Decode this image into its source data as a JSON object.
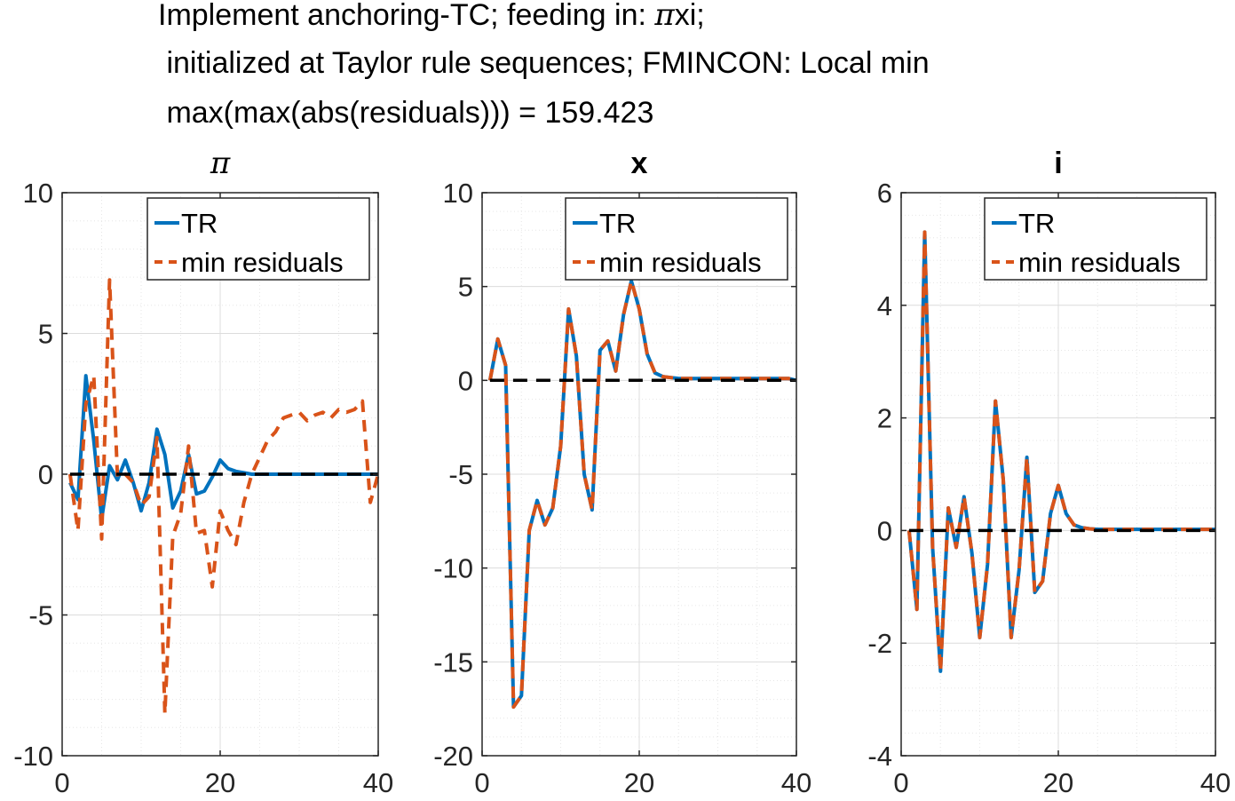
{
  "figure_title": {
    "line1_pre": "Implement anchoring-TC; feeding in: ",
    "line1_greek": "π",
    "line1_post": "xi;",
    "line2": " initialized at Taylor rule sequences; FMINCON: Local min",
    "line3": " max(max(abs(residuals))) = 159.423"
  },
  "colors": {
    "tr": "#0072BD",
    "min_residuals": "#D95319",
    "zero_line": "#000000",
    "grid": "#dcdcdc"
  },
  "chart_data": [
    {
      "type": "line",
      "title": "π",
      "title_style": "italic-serif",
      "xlim": [
        0,
        40
      ],
      "ylim": [
        -10,
        10
      ],
      "xticks": [
        0,
        20,
        40
      ],
      "xtick_labels": [
        "0",
        "20",
        "40"
      ],
      "yticks": [
        -10,
        -5,
        0,
        5,
        10
      ],
      "ytick_labels": [
        "-10",
        "-5",
        "0",
        "5",
        "10"
      ],
      "grid": true,
      "legend": "top-right",
      "series": [
        {
          "name": "TR",
          "style": "solid",
          "x": [
            1,
            2,
            3,
            4,
            5,
            6,
            7,
            8,
            9,
            10,
            11,
            12,
            13,
            14,
            15,
            16,
            17,
            18,
            19,
            20,
            21,
            22,
            23,
            24,
            25,
            26,
            27,
            28,
            29,
            30,
            31,
            32,
            33,
            34,
            35,
            36,
            37,
            38,
            39,
            40
          ],
          "y": [
            -0.3,
            -0.9,
            3.5,
            1.2,
            -1.6,
            0.3,
            -0.2,
            0.5,
            -0.3,
            -1.3,
            -0.3,
            1.6,
            0.7,
            -1.2,
            -0.6,
            0.7,
            -0.7,
            -0.6,
            -0.1,
            0.5,
            0.2,
            0.1,
            0.05,
            0.0,
            0.0,
            0.0,
            0.0,
            0.0,
            0.0,
            0.0,
            0.0,
            0.0,
            0.0,
            0.0,
            0.0,
            0.0,
            0.0,
            0.0,
            0.0,
            0.0
          ]
        },
        {
          "name": "min residuals",
          "style": "dashed",
          "x": [
            1,
            2,
            3,
            4,
            5,
            6,
            7,
            8,
            9,
            10,
            11,
            12,
            13,
            14,
            15,
            16,
            17,
            18,
            19,
            20,
            21,
            22,
            23,
            24,
            25,
            26,
            27,
            28,
            29,
            30,
            31,
            32,
            33,
            34,
            35,
            36,
            37,
            38,
            39,
            40
          ],
          "y": [
            0.0,
            -2.0,
            2.5,
            3.5,
            -2.3,
            6.9,
            -0.1,
            0.0,
            -0.3,
            -1.1,
            -0.8,
            1.3,
            -8.5,
            -2.2,
            -1.4,
            1.0,
            -2.1,
            -2.0,
            -4.0,
            -1.3,
            -2.0,
            -2.5,
            -1.0,
            0.0,
            0.6,
            1.2,
            1.5,
            2.0,
            2.1,
            2.2,
            1.9,
            2.1,
            2.2,
            2.0,
            2.3,
            2.2,
            2.3,
            2.6,
            -1.0,
            0.0
          ]
        },
        {
          "name": "zero",
          "style": "zero-dashed",
          "x": [
            1,
            40
          ],
          "y": [
            0,
            0
          ]
        }
      ]
    },
    {
      "type": "line",
      "title": "x",
      "title_style": "bold",
      "xlim": [
        0,
        40
      ],
      "ylim": [
        -20,
        10
      ],
      "xticks": [
        0,
        20,
        40
      ],
      "xtick_labels": [
        "0",
        "20",
        "40"
      ],
      "yticks": [
        -20,
        -15,
        -10,
        -5,
        0,
        5,
        10
      ],
      "ytick_labels": [
        "-20",
        "-15",
        "-10",
        "-5",
        "0",
        "5",
        "10"
      ],
      "grid": true,
      "legend": "top-right",
      "series": [
        {
          "name": "TR",
          "style": "solid",
          "x": [
            1,
            2,
            3,
            4,
            5,
            6,
            7,
            8,
            9,
            10,
            11,
            12,
            13,
            14,
            15,
            16,
            17,
            18,
            19,
            20,
            21,
            22,
            23,
            24,
            25,
            26,
            27,
            28,
            29,
            30,
            31,
            32,
            33,
            34,
            35,
            36,
            37,
            38,
            39,
            40
          ],
          "y": [
            0.0,
            2.2,
            0.8,
            -17.4,
            -16.8,
            -8.0,
            -6.4,
            -7.7,
            -6.8,
            -3.5,
            3.8,
            1.3,
            -5.0,
            -6.9,
            1.6,
            2.1,
            0.5,
            3.5,
            5.3,
            3.8,
            1.4,
            0.4,
            0.2,
            0.15,
            0.1,
            0.1,
            0.1,
            0.1,
            0.1,
            0.1,
            0.1,
            0.1,
            0.1,
            0.1,
            0.1,
            0.1,
            0.1,
            0.1,
            0.1,
            0.0
          ]
        },
        {
          "name": "min residuals",
          "style": "dashed",
          "x": [
            1,
            2,
            3,
            4,
            5,
            6,
            7,
            8,
            9,
            10,
            11,
            12,
            13,
            14,
            15,
            16,
            17,
            18,
            19,
            20,
            21,
            22,
            23,
            24,
            25,
            26,
            27,
            28,
            29,
            30,
            31,
            32,
            33,
            34,
            35,
            36,
            37,
            38,
            39,
            40
          ],
          "y": [
            0.0,
            2.2,
            0.8,
            -17.4,
            -16.8,
            -8.0,
            -6.4,
            -7.7,
            -6.8,
            -3.5,
            3.8,
            1.3,
            -5.0,
            -6.9,
            1.6,
            2.1,
            0.5,
            3.5,
            5.3,
            3.8,
            1.4,
            0.4,
            0.2,
            0.15,
            0.1,
            0.1,
            0.1,
            0.1,
            0.1,
            0.1,
            0.1,
            0.1,
            0.1,
            0.1,
            0.1,
            0.1,
            0.1,
            0.1,
            0.1,
            0.0
          ]
        },
        {
          "name": "zero",
          "style": "zero-dashed",
          "x": [
            1,
            40
          ],
          "y": [
            0,
            0
          ]
        }
      ]
    },
    {
      "type": "line",
      "title": "i",
      "title_style": "bold",
      "xlim": [
        0,
        40
      ],
      "ylim": [
        -4,
        6
      ],
      "xticks": [
        0,
        20,
        40
      ],
      "xtick_labels": [
        "0",
        "20",
        "40"
      ],
      "yticks": [
        -4,
        -2,
        0,
        2,
        4,
        6
      ],
      "ytick_labels": [
        "-4",
        "-2",
        "0",
        "2",
        "4",
        "6"
      ],
      "grid": true,
      "legend": "top-right",
      "series": [
        {
          "name": "TR",
          "style": "solid",
          "x": [
            1,
            2,
            3,
            4,
            5,
            6,
            7,
            8,
            9,
            10,
            11,
            12,
            13,
            14,
            15,
            16,
            17,
            18,
            19,
            20,
            21,
            22,
            23,
            24,
            25,
            26,
            27,
            28,
            29,
            30,
            31,
            32,
            33,
            34,
            35,
            36,
            37,
            38,
            39,
            40
          ],
          "y": [
            0.0,
            -1.4,
            5.3,
            -0.3,
            -2.5,
            0.4,
            -0.3,
            0.6,
            -0.4,
            -1.9,
            -0.6,
            2.3,
            0.9,
            -1.9,
            -0.7,
            1.3,
            -1.1,
            -0.9,
            0.3,
            0.8,
            0.3,
            0.1,
            0.05,
            0.03,
            0.02,
            0.02,
            0.02,
            0.02,
            0.02,
            0.02,
            0.02,
            0.02,
            0.02,
            0.02,
            0.02,
            0.02,
            0.02,
            0.02,
            0.02,
            0.02
          ]
        },
        {
          "name": "min residuals",
          "style": "dashed",
          "x": [
            1,
            2,
            3,
            4,
            5,
            6,
            7,
            8,
            9,
            10,
            11,
            12,
            13,
            14,
            15,
            16,
            17,
            18,
            19,
            20,
            21,
            22,
            23,
            24,
            25,
            26,
            27,
            28,
            29,
            30,
            31,
            32,
            33,
            34,
            35,
            36,
            37,
            38,
            39,
            40
          ],
          "y": [
            0.0,
            -1.4,
            5.3,
            -0.3,
            -2.5,
            0.4,
            -0.3,
            0.6,
            -0.4,
            -1.9,
            -0.6,
            2.3,
            0.9,
            -1.9,
            -0.7,
            1.3,
            -1.1,
            -0.9,
            0.3,
            0.8,
            0.3,
            0.1,
            0.05,
            0.03,
            0.02,
            0.02,
            0.02,
            0.02,
            0.02,
            0.02,
            0.02,
            0.02,
            0.02,
            0.02,
            0.02,
            0.02,
            0.02,
            0.02,
            0.02,
            0.02
          ]
        },
        {
          "name": "zero",
          "style": "zero-dashed",
          "x": [
            1,
            40
          ],
          "y": [
            0,
            0
          ]
        }
      ]
    }
  ]
}
